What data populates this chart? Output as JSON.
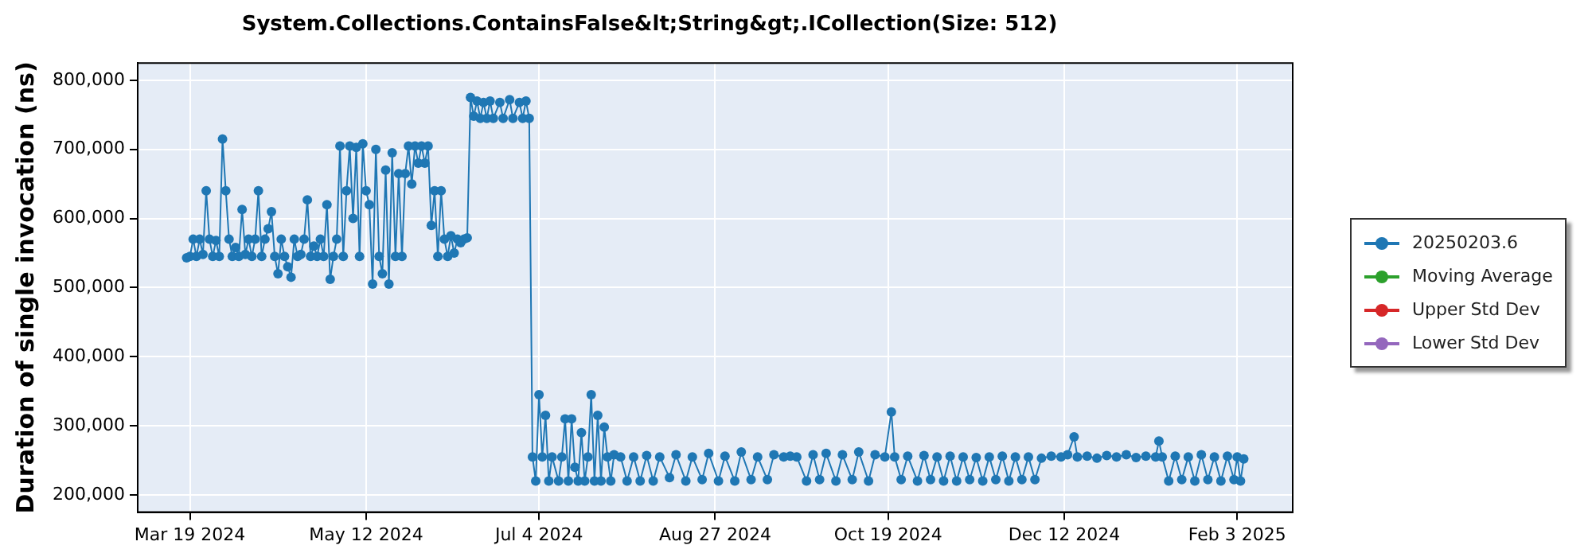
{
  "chart_data": {
    "type": "line",
    "title": "System.Collections.ContainsFalse&lt;String&gt;.ICollection(Size: 512)",
    "ylabel": "Duration of single invocation (ns)",
    "xlim": [
      "2024-03-03",
      "2025-02-20"
    ],
    "xticks": [
      {
        "value": "2024-03-19",
        "label": "Mar 19 2024"
      },
      {
        "value": "2024-05-12",
        "label": "May 12 2024"
      },
      {
        "value": "2024-07-04",
        "label": "Jul 4 2024"
      },
      {
        "value": "2024-08-27",
        "label": "Aug 27 2024"
      },
      {
        "value": "2024-10-19",
        "label": "Oct 19 2024"
      },
      {
        "value": "2024-12-12",
        "label": "Dec 12 2024"
      },
      {
        "value": "2025-02-03",
        "label": "Feb 3 2025"
      }
    ],
    "ylim": [
      175000,
      825000
    ],
    "yticks": [
      {
        "value": 200000,
        "label": "200,000"
      },
      {
        "value": 300000,
        "label": "300,000"
      },
      {
        "value": 400000,
        "label": "400,000"
      },
      {
        "value": 500000,
        "label": "500,000"
      },
      {
        "value": 600000,
        "label": "600,000"
      },
      {
        "value": 700000,
        "label": "700,000"
      },
      {
        "value": 800000,
        "label": "800,000"
      }
    ],
    "grid": true,
    "legend": "right",
    "marker": "circle",
    "line_style": "solid",
    "series": [
      {
        "name": "20250203.6",
        "color": "#1f77b4",
        "x": [
          "2024-03-18",
          "2024-03-19",
          "2024-03-20",
          "2024-03-21",
          "2024-03-22",
          "2024-03-23",
          "2024-03-24",
          "2024-03-25",
          "2024-03-26",
          "2024-03-27",
          "2024-03-28",
          "2024-03-29",
          "2024-03-30",
          "2024-03-31",
          "2024-04-01",
          "2024-04-02",
          "2024-04-03",
          "2024-04-04",
          "2024-04-05",
          "2024-04-06",
          "2024-04-07",
          "2024-04-08",
          "2024-04-09",
          "2024-04-10",
          "2024-04-11",
          "2024-04-12",
          "2024-04-13",
          "2024-04-14",
          "2024-04-15",
          "2024-04-16",
          "2024-04-17",
          "2024-04-18",
          "2024-04-19",
          "2024-04-20",
          "2024-04-21",
          "2024-04-22",
          "2024-04-23",
          "2024-04-24",
          "2024-04-25",
          "2024-04-26",
          "2024-04-27",
          "2024-04-28",
          "2024-04-29",
          "2024-04-30",
          "2024-05-01",
          "2024-05-02",
          "2024-05-03",
          "2024-05-04",
          "2024-05-05",
          "2024-05-06",
          "2024-05-07",
          "2024-05-08",
          "2024-05-09",
          "2024-05-10",
          "2024-05-11",
          "2024-05-12",
          "2024-05-13",
          "2024-05-14",
          "2024-05-15",
          "2024-05-16",
          "2024-05-17",
          "2024-05-18",
          "2024-05-19",
          "2024-05-20",
          "2024-05-21",
          "2024-05-22",
          "2024-05-23",
          "2024-05-24",
          "2024-05-25",
          "2024-05-26",
          "2024-05-27",
          "2024-05-28",
          "2024-05-29",
          "2024-05-30",
          "2024-05-31",
          "2024-06-01",
          "2024-06-02",
          "2024-06-03",
          "2024-06-04",
          "2024-06-05",
          "2024-06-06",
          "2024-06-07",
          "2024-06-08",
          "2024-06-09",
          "2024-06-10",
          "2024-06-11",
          "2024-06-12",
          "2024-06-13",
          "2024-06-14",
          "2024-06-15",
          "2024-06-16",
          "2024-06-17",
          "2024-06-18",
          "2024-06-19",
          "2024-06-20",
          "2024-06-22",
          "2024-06-23",
          "2024-06-25",
          "2024-06-26",
          "2024-06-28",
          "2024-06-29",
          "2024-06-30",
          "2024-07-01",
          "2024-07-02",
          "2024-07-03",
          "2024-07-04",
          "2024-07-05",
          "2024-07-06",
          "2024-07-07",
          "2024-07-08",
          "2024-07-10",
          "2024-07-11",
          "2024-07-12",
          "2024-07-13",
          "2024-07-14",
          "2024-07-15",
          "2024-07-16",
          "2024-07-17",
          "2024-07-18",
          "2024-07-19",
          "2024-07-20",
          "2024-07-21",
          "2024-07-22",
          "2024-07-23",
          "2024-07-24",
          "2024-07-25",
          "2024-07-26",
          "2024-07-27",
          "2024-07-29",
          "2024-07-31",
          "2024-08-02",
          "2024-08-04",
          "2024-08-06",
          "2024-08-08",
          "2024-08-10",
          "2024-08-13",
          "2024-08-15",
          "2024-08-18",
          "2024-08-20",
          "2024-08-23",
          "2024-08-25",
          "2024-08-28",
          "2024-08-30",
          "2024-09-02",
          "2024-09-04",
          "2024-09-07",
          "2024-09-09",
          "2024-09-12",
          "2024-09-14",
          "2024-09-17",
          "2024-09-19",
          "2024-09-21",
          "2024-09-24",
          "2024-09-26",
          "2024-09-28",
          "2024-09-30",
          "2024-10-03",
          "2024-10-05",
          "2024-10-08",
          "2024-10-10",
          "2024-10-13",
          "2024-10-15",
          "2024-10-18",
          "2024-10-20",
          "2024-10-21",
          "2024-10-23",
          "2024-10-25",
          "2024-10-28",
          "2024-10-30",
          "2024-11-01",
          "2024-11-03",
          "2024-11-05",
          "2024-11-07",
          "2024-11-09",
          "2024-11-11",
          "2024-11-13",
          "2024-11-15",
          "2024-11-17",
          "2024-11-19",
          "2024-11-21",
          "2024-11-23",
          "2024-11-25",
          "2024-11-27",
          "2024-11-29",
          "2024-12-01",
          "2024-12-03",
          "2024-12-05",
          "2024-12-08",
          "2024-12-11",
          "2024-12-13",
          "2024-12-15",
          "2024-12-16",
          "2024-12-19",
          "2024-12-22",
          "2024-12-25",
          "2024-12-28",
          "2024-12-31",
          "2025-01-03",
          "2025-01-06",
          "2025-01-09",
          "2025-01-10",
          "2025-01-11",
          "2025-01-13",
          "2025-01-15",
          "2025-01-17",
          "2025-01-19",
          "2025-01-21",
          "2025-01-23",
          "2025-01-25",
          "2025-01-27",
          "2025-01-29",
          "2025-01-31",
          "2025-02-02",
          "2025-02-03",
          "2025-02-04",
          "2025-02-05"
        ],
        "values": [
          543000,
          545000,
          570000,
          545000,
          570000,
          548000,
          640000,
          570000,
          545000,
          568000,
          545000,
          715000,
          640000,
          570000,
          545000,
          558000,
          545000,
          613000,
          548000,
          570000,
          545000,
          570000,
          640000,
          545000,
          570000,
          585000,
          610000,
          545000,
          520000,
          570000,
          545000,
          530000,
          515000,
          570000,
          545000,
          548000,
          570000,
          627000,
          545000,
          560000,
          545000,
          570000,
          545000,
          620000,
          512000,
          545000,
          570000,
          705000,
          545000,
          640000,
          705000,
          600000,
          703000,
          545000,
          708000,
          640000,
          620000,
          505000,
          700000,
          545000,
          520000,
          670000,
          505000,
          695000,
          545000,
          665000,
          545000,
          665000,
          705000,
          650000,
          705000,
          680000,
          705000,
          680000,
          705000,
          590000,
          640000,
          545000,
          640000,
          570000,
          545000,
          575000,
          550000,
          570000,
          565000,
          570000,
          572000,
          775000,
          748000,
          770000,
          745000,
          768000,
          745000,
          770000,
          745000,
          768000,
          745000,
          772000,
          745000,
          768000,
          745000,
          770000,
          745000,
          255000,
          220000,
          345000,
          255000,
          315000,
          220000,
          255000,
          220000,
          255000,
          310000,
          220000,
          310000,
          240000,
          220000,
          290000,
          220000,
          255000,
          345000,
          220000,
          315000,
          220000,
          298000,
          255000,
          220000,
          258000,
          255000,
          220000,
          255000,
          220000,
          257000,
          220000,
          255000,
          225000,
          258000,
          220000,
          255000,
          222000,
          260000,
          220000,
          256000,
          220000,
          262000,
          222000,
          255000,
          222000,
          258000,
          255000,
          256000,
          255000,
          220000,
          258000,
          222000,
          260000,
          220000,
          258000,
          222000,
          262000,
          220000,
          258000,
          255000,
          320000,
          255000,
          222000,
          256000,
          220000,
          257000,
          222000,
          255000,
          220000,
          256000,
          220000,
          255000,
          222000,
          254000,
          220000,
          255000,
          222000,
          256000,
          220000,
          255000,
          222000,
          255000,
          222000,
          253000,
          256000,
          255000,
          258000,
          284000,
          255000,
          256000,
          253000,
          257000,
          255000,
          258000,
          254000,
          256000,
          255000,
          278000,
          255000,
          220000,
          256000,
          222000,
          255000,
          220000,
          258000,
          222000,
          255000,
          220000,
          256000,
          222000,
          255000,
          220000,
          252000
        ]
      },
      {
        "name": "Moving Average",
        "color": "#2ca02c"
      },
      {
        "name": "Upper Std Dev",
        "color": "#d62728"
      },
      {
        "name": "Lower Std Dev",
        "color": "#9467bd"
      }
    ]
  }
}
